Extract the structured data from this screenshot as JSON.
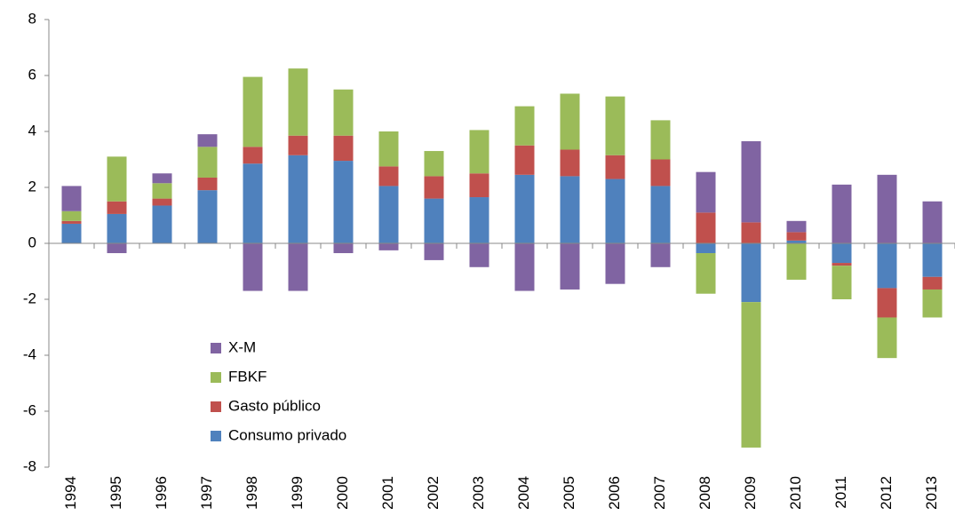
{
  "chart_data": {
    "type": "bar",
    "stacked": true,
    "categories": [
      "1994",
      "1995",
      "1996",
      "1997",
      "1998",
      "1999",
      "2000",
      "2001",
      "2002",
      "2003",
      "2004",
      "2005",
      "2006",
      "2007",
      "2008",
      "2009",
      "2010",
      "2011",
      "2012",
      "2013"
    ],
    "series": [
      {
        "name": "Consumo privado",
        "color": "#4f81bd",
        "values": [
          0.7,
          1.05,
          1.35,
          1.9,
          2.85,
          3.15,
          2.95,
          2.05,
          1.6,
          1.65,
          2.45,
          2.4,
          2.3,
          2.05,
          -0.35,
          -2.1,
          0.1,
          -0.7,
          -1.6,
          -1.2
        ]
      },
      {
        "name": "Gasto público",
        "color": "#c0504d",
        "values": [
          0.1,
          0.45,
          0.25,
          0.45,
          0.6,
          0.7,
          0.9,
          0.7,
          0.8,
          0.85,
          1.05,
          0.95,
          0.85,
          0.95,
          1.1,
          0.75,
          0.3,
          -0.1,
          -1.05,
          -0.45
        ]
      },
      {
        "name": "FBKF",
        "color": "#9bbb59",
        "values": [
          0.35,
          1.6,
          0.55,
          1.1,
          2.5,
          2.4,
          1.65,
          1.25,
          0.9,
          1.55,
          1.4,
          2.0,
          2.1,
          1.4,
          -1.45,
          -5.2,
          -1.3,
          -1.2,
          -1.45,
          -1.0
        ]
      },
      {
        "name": "X-M",
        "color": "#8064a2",
        "values": [
          0.9,
          -0.35,
          0.35,
          0.45,
          -1.7,
          -1.7,
          -0.35,
          -0.25,
          -0.6,
          -0.85,
          -1.7,
          -1.65,
          -1.45,
          -0.85,
          1.45,
          2.9,
          0.4,
          2.1,
          2.45,
          1.5
        ]
      }
    ],
    "ylim": [
      -8,
      8
    ],
    "yticks": [
      -8,
      -6,
      -4,
      -2,
      0,
      2,
      4,
      6,
      8
    ],
    "grid": false
  }
}
